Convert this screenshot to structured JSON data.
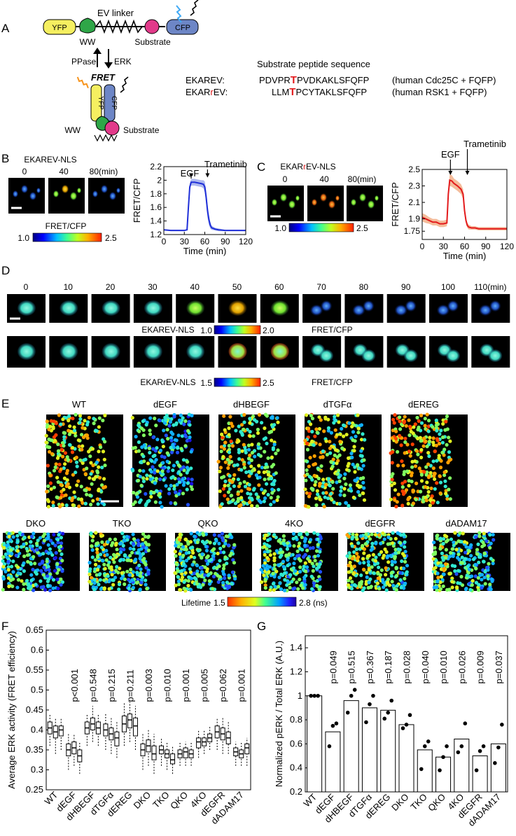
{
  "panels": {
    "A": {
      "letter": "A",
      "construct": [
        "YFP",
        "WW",
        "EV linker",
        "Substrate",
        "CFP"
      ],
      "arrows": {
        "left": "PPase",
        "right": "ERK"
      },
      "fret_label": "FRET",
      "folded": [
        "YFP",
        "CFP",
        "WW",
        "Substrate"
      ],
      "seq_header": "Substrate peptide sequence",
      "sensors": [
        {
          "name_a": "EKAR",
          "name_r": "",
          "name_b": "EV:",
          "seq_pre": "PDVPR",
          "seq_t": "T",
          "seq_post": "PVDKAKLSFQFP",
          "note": "(human Cdc25C + FQFP)"
        },
        {
          "name_a": "EKAR",
          "name_r": "r",
          "name_b": "EV:",
          "seq_pre": "LLM",
          "seq_t": "T",
          "seq_post": "PCYTAKLSFQFP",
          "note": "(human RSK1 + FQFP)"
        }
      ]
    },
    "B": {
      "letter": "B",
      "title": "EKAREV-NLS",
      "times": [
        "0",
        "40",
        "80(min)"
      ],
      "colorbar_label": "FRET/CFP",
      "colorbar_min": "1.0",
      "colorbar_max": "2.5",
      "annotations": [
        "EGF",
        "Trametinib"
      ]
    },
    "C": {
      "letter": "C",
      "title_a": "EKAR",
      "title_r": "r",
      "title_b": "EV-NLS",
      "times": [
        "0",
        "40",
        "80(min)"
      ],
      "colorbar_min": "1.0",
      "colorbar_max": "2.5",
      "annotations": [
        "EGF",
        "Trametinib"
      ]
    },
    "D": {
      "letter": "D",
      "times": [
        "0",
        "10",
        "20",
        "30",
        "40",
        "50",
        "60",
        "70",
        "80",
        "90",
        "100",
        "110(min)"
      ],
      "row1_label": "EKAREV-NLS",
      "row1_min": "1.0",
      "row1_max": "2.0",
      "row2_label": "EKARrEV-NLS",
      "row2_min": "1.5",
      "row2_max": "2.5",
      "fret_label": "FRET/CFP"
    },
    "E": {
      "letter": "E",
      "row1": [
        "WT",
        "dEGF",
        "dHBEGF",
        "dTGFα",
        "dEREG"
      ],
      "row2": [
        "DKO",
        "TKO",
        "QKO",
        "4KO",
        "dEGFR",
        "dADAM17"
      ],
      "lifetime_label": "Lifetime",
      "lifetime_min": "1.5",
      "lifetime_max": "2.8 (ns)"
    },
    "F": {
      "letter": "F"
    },
    "G": {
      "letter": "G"
    }
  },
  "chart_data": [
    {
      "id": "B",
      "type": "line",
      "xlabel": "Time (min)",
      "ylabel": "FRET/CFP",
      "xlim": [
        0,
        120
      ],
      "ylim": [
        1.2,
        2.2
      ],
      "xticks": [
        0,
        30,
        60,
        90,
        120
      ],
      "yticks": [
        1.2,
        1.4,
        1.6,
        1.8,
        2.0,
        2.2
      ],
      "ytick_labels": [
        "1.2",
        "1.4",
        "1.6",
        "1.8",
        "2",
        "2.2"
      ],
      "color": "#1f2fd8",
      "band_color": "#8a9ae8",
      "x": [
        0,
        10,
        20,
        30,
        34,
        36,
        38,
        40,
        45,
        50,
        55,
        58,
        60,
        62,
        64,
        66,
        68,
        70,
        75,
        80,
        90,
        100,
        110,
        120
      ],
      "y": [
        1.27,
        1.26,
        1.26,
        1.26,
        1.27,
        1.6,
        1.9,
        1.97,
        1.97,
        1.96,
        1.95,
        1.94,
        1.9,
        1.75,
        1.55,
        1.42,
        1.34,
        1.3,
        1.28,
        1.27,
        1.26,
        1.26,
        1.26,
        1.26
      ],
      "err": [
        0.01,
        0.01,
        0.01,
        0.01,
        0.01,
        0.05,
        0.05,
        0.05,
        0.05,
        0.05,
        0.05,
        0.06,
        0.08,
        0.1,
        0.1,
        0.08,
        0.05,
        0.03,
        0.02,
        0.02,
        0.01,
        0.01,
        0.01,
        0.01
      ]
    },
    {
      "id": "C",
      "type": "line",
      "xlabel": "Time (min)",
      "ylabel": "FRET/CFP",
      "xlim": [
        0,
        120
      ],
      "ylim": [
        1.65,
        2.5
      ],
      "xticks": [
        0,
        30,
        60,
        90,
        120
      ],
      "yticks": [
        1.75,
        1.9,
        2.1,
        2.3,
        2.5
      ],
      "ytick_labels": [
        "1.75",
        "1.9",
        "2.1",
        "2.3",
        "2.5"
      ],
      "color": "#e31a1c",
      "band_color": "#f0a070",
      "x": [
        0,
        5,
        10,
        15,
        20,
        25,
        30,
        35,
        37,
        39,
        42,
        45,
        50,
        55,
        58,
        60,
        62,
        64,
        66,
        70,
        75,
        80,
        90,
        100,
        110,
        120
      ],
      "y": [
        1.92,
        1.9,
        1.88,
        1.86,
        1.86,
        1.84,
        1.84,
        1.85,
        2.2,
        2.37,
        2.36,
        2.33,
        2.3,
        2.26,
        2.2,
        2.0,
        1.88,
        1.82,
        1.8,
        1.79,
        1.79,
        1.78,
        1.78,
        1.78,
        1.78,
        1.78
      ],
      "err": [
        0.05,
        0.05,
        0.04,
        0.04,
        0.04,
        0.04,
        0.04,
        0.04,
        0.05,
        0.07,
        0.07,
        0.06,
        0.06,
        0.06,
        0.06,
        0.05,
        0.04,
        0.03,
        0.03,
        0.02,
        0.02,
        0.02,
        0.02,
        0.02,
        0.02,
        0.02
      ]
    },
    {
      "id": "F",
      "type": "box",
      "ylabel": "Average ERK activity (FRET efficiency)",
      "ylim": [
        0.25,
        0.65
      ],
      "yticks": [
        0.25,
        0.3,
        0.35,
        0.4,
        0.45,
        0.5,
        0.55,
        0.6,
        0.65
      ],
      "ytick_labels": [
        "0.25",
        "0.3",
        "0.35",
        "0.4",
        "0.45",
        "0.5",
        "0.55",
        "0.6",
        "0.65"
      ],
      "categories": [
        "WT",
        "dEGF",
        "dHBEGF",
        "dTGFα",
        "dEREG",
        "DKO",
        "TKO",
        "QKO",
        "4KO",
        "dEGFR",
        "dADAM17"
      ],
      "pvalues": [
        "",
        "p<0.001",
        "p=0.548",
        "p=0.215",
        "p=0.211",
        "p=0.003",
        "p=0.010",
        "p=0.001",
        "p=0.005",
        "p=0.062",
        "p=0.001"
      ],
      "boxes": [
        [
          [
            0.36,
            0.39,
            0.405,
            0.42,
            0.44
          ],
          [
            0.34,
            0.38,
            0.395,
            0.41,
            0.43
          ],
          [
            0.35,
            0.385,
            0.4,
            0.41,
            0.43
          ]
        ],
        [
          [
            0.3,
            0.335,
            0.35,
            0.365,
            0.39
          ],
          [
            0.31,
            0.34,
            0.355,
            0.37,
            0.39
          ],
          [
            0.29,
            0.32,
            0.335,
            0.35,
            0.37
          ]
        ],
        [
          [
            0.36,
            0.39,
            0.405,
            0.42,
            0.44
          ],
          [
            0.37,
            0.4,
            0.415,
            0.43,
            0.46
          ],
          [
            0.36,
            0.39,
            0.405,
            0.42,
            0.44
          ]
        ],
        [
          [
            0.35,
            0.385,
            0.4,
            0.415,
            0.44
          ],
          [
            0.34,
            0.375,
            0.39,
            0.405,
            0.43
          ],
          [
            0.33,
            0.36,
            0.38,
            0.395,
            0.42
          ]
        ],
        [
          [
            0.36,
            0.395,
            0.415,
            0.435,
            0.47
          ],
          [
            0.37,
            0.405,
            0.425,
            0.44,
            0.47
          ],
          [
            0.35,
            0.385,
            0.41,
            0.43,
            0.46
          ]
        ],
        [
          [
            0.3,
            0.335,
            0.35,
            0.365,
            0.39
          ],
          [
            0.31,
            0.345,
            0.36,
            0.375,
            0.4
          ],
          [
            0.29,
            0.325,
            0.34,
            0.36,
            0.39
          ]
        ],
        [
          [
            0.31,
            0.34,
            0.35,
            0.36,
            0.38
          ],
          [
            0.3,
            0.33,
            0.34,
            0.35,
            0.37
          ],
          [
            0.29,
            0.315,
            0.325,
            0.34,
            0.36
          ]
        ],
        [
          [
            0.31,
            0.33,
            0.34,
            0.35,
            0.37
          ],
          [
            0.31,
            0.33,
            0.345,
            0.355,
            0.37
          ],
          [
            0.31,
            0.33,
            0.34,
            0.35,
            0.37
          ]
        ],
        [
          [
            0.33,
            0.355,
            0.37,
            0.38,
            0.4
          ],
          [
            0.34,
            0.36,
            0.37,
            0.38,
            0.4
          ],
          [
            0.35,
            0.37,
            0.38,
            0.39,
            0.41
          ]
        ],
        [
          [
            0.35,
            0.38,
            0.395,
            0.41,
            0.43
          ],
          [
            0.34,
            0.375,
            0.39,
            0.405,
            0.43
          ],
          [
            0.34,
            0.365,
            0.38,
            0.395,
            0.42
          ]
        ],
        [
          [
            0.31,
            0.335,
            0.345,
            0.355,
            0.37
          ],
          [
            0.31,
            0.33,
            0.34,
            0.35,
            0.37
          ],
          [
            0.31,
            0.34,
            0.355,
            0.365,
            0.38
          ]
        ]
      ]
    },
    {
      "id": "G",
      "type": "bar",
      "ylabel": "Normalized pERK / Total ERK (A.U.)",
      "ylim": [
        0.2,
        1.5
      ],
      "yticks": [
        0.2,
        0.4,
        0.6,
        0.8,
        1.0,
        1.2,
        1.4
      ],
      "ytick_labels": [
        "0.2",
        "0.4",
        "0.6",
        "0.8",
        "1",
        "1.2",
        "1.4"
      ],
      "categories": [
        "WT",
        "dEGF",
        "dHBEGF",
        "dTGFα",
        "dEREG",
        "DKO",
        "TKO",
        "QKO",
        "4KO",
        "dEGFR",
        "dADAM17"
      ],
      "pvalues": [
        "",
        "p=0.049",
        "p=0.515",
        "p=0.367",
        "p=0.187",
        "p=0.028",
        "p=0.040",
        "p=0.010",
        "p=0.026",
        "p=0.009",
        "p=0.037"
      ],
      "values": [
        1.0,
        0.7,
        0.96,
        0.9,
        0.88,
        0.76,
        0.55,
        0.49,
        0.64,
        0.5,
        0.6
      ],
      "points": [
        [
          1.0,
          1.0,
          1.0
        ],
        [
          0.58,
          0.75,
          0.77
        ],
        [
          0.86,
          1.0,
          1.05
        ],
        [
          0.78,
          0.93,
          1.0
        ],
        [
          0.81,
          0.86,
          0.96
        ],
        [
          0.73,
          0.76,
          0.84
        ],
        [
          0.39,
          0.58,
          0.62
        ],
        [
          0.38,
          0.49,
          0.58
        ],
        [
          0.53,
          0.58,
          0.77
        ],
        [
          0.38,
          0.54,
          0.58
        ],
        [
          0.44,
          0.57,
          0.76
        ]
      ]
    }
  ]
}
